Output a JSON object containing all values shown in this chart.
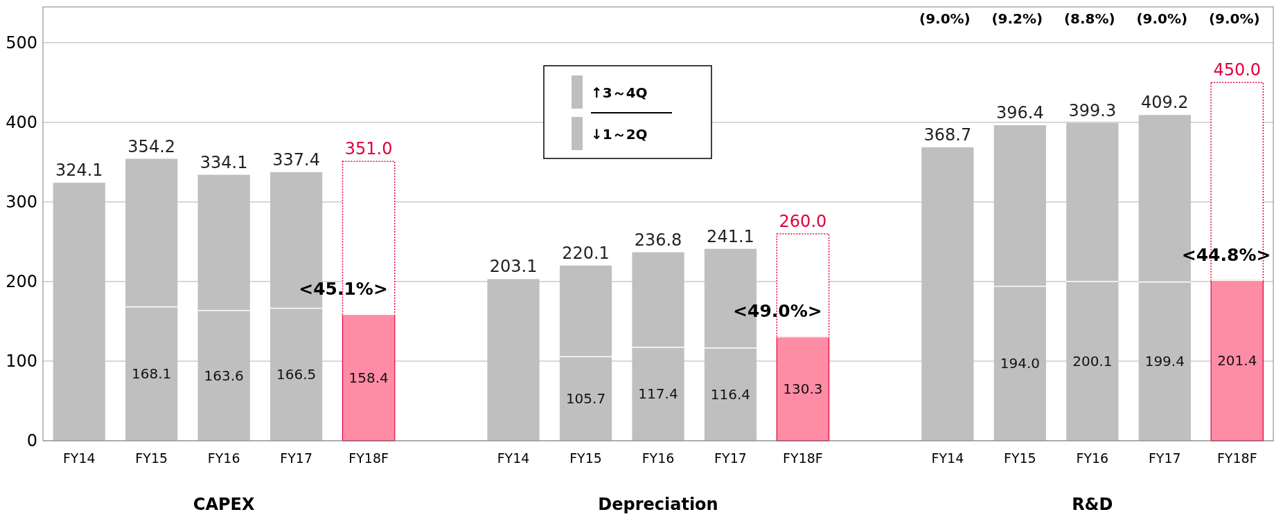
{
  "chart_data": {
    "type": "bar",
    "stacked": true,
    "categories": [
      "FY14",
      "FY15",
      "FY16",
      "FY17",
      "FY18F",
      null,
      "FY14",
      "FY15",
      "FY16",
      "FY17",
      "FY18F",
      null,
      "FY14",
      "FY15",
      "FY16",
      "FY17",
      "FY18F"
    ],
    "series": [
      {
        "name": "↓1～2Q",
        "color": "#bfbfbf",
        "values": [
          null,
          168.1,
          163.6,
          166.5,
          158.4,
          null,
          null,
          105.7,
          117.4,
          116.4,
          130.3,
          null,
          null,
          194.0,
          200.1,
          199.4,
          201.4
        ],
        "colors": [
          null,
          "#bfbfbf",
          "#bfbfbf",
          "#bfbfbf",
          "#ff8ca5",
          null,
          null,
          "#bfbfbf",
          "#bfbfbf",
          "#bfbfbf",
          "#ff8ca5",
          null,
          null,
          "#bfbfbf",
          "#bfbfbf",
          "#bfbfbf",
          "#ff8ca5"
        ],
        "value_labels": [
          null,
          "168.1",
          "163.6",
          "166.5",
          "158.4",
          null,
          null,
          "105.7",
          "117.4",
          "116.4",
          "130.3",
          null,
          null,
          "194.0",
          "200.1",
          "199.4",
          "201.4"
        ]
      },
      {
        "name": "↑3～4Q",
        "color": "#bfbfbf",
        "values": [
          324.1,
          186.1,
          170.5,
          170.9,
          192.6,
          null,
          203.1,
          114.4,
          119.4,
          124.7,
          129.7,
          null,
          368.7,
          202.4,
          199.2,
          209.8,
          248.6
        ],
        "colors": [
          "#bfbfbf",
          "#bfbfbf",
          "#bfbfbf",
          "#bfbfbf",
          "#ffffff",
          null,
          "#bfbfbf",
          "#bfbfbf",
          "#bfbfbf",
          "#bfbfbf",
          "#ffffff",
          null,
          "#bfbfbf",
          "#bfbfbf",
          "#bfbfbf",
          "#bfbfbf",
          "#ffffff"
        ]
      }
    ],
    "totals": [
      "324.1",
      "354.2",
      "334.1",
      "337.4",
      "351.0",
      null,
      "203.1",
      "220.1",
      "236.8",
      "241.1",
      "260.0",
      null,
      "368.7",
      "396.4",
      "399.3",
      "409.2",
      "450.0"
    ],
    "ylim": [
      0,
      545
    ],
    "yticks": [
      0,
      100,
      200,
      300,
      400,
      500
    ],
    "grid": "y",
    "legend": "top",
    "annotations": [
      "CAPEX",
      "Depreciation",
      "R&D",
      "(9.0%)",
      "(9.2%)",
      "(8.8%)",
      "(9.0%)",
      "(9.0%)",
      {
        "text": "<45.1%>",
        "y": 158.4
      },
      {
        "text": "<49.0%>",
        "y": 130.3
      },
      {
        "text": "<44.8%>",
        "y": 201.4
      }
    ]
  }
}
